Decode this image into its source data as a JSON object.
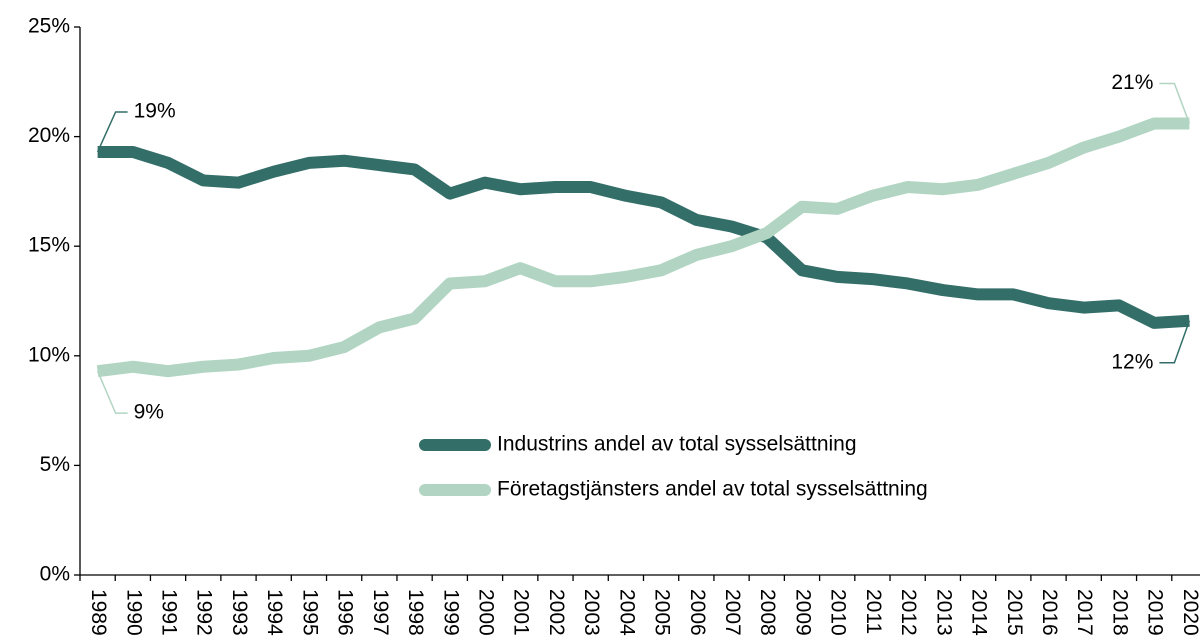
{
  "chart_data": {
    "type": "line",
    "categories": [
      "1989",
      "1990",
      "1991",
      "1992",
      "1993",
      "1994",
      "1995",
      "1996",
      "1997",
      "1998",
      "1999",
      "2000",
      "2001",
      "2002",
      "2003",
      "2004",
      "2005",
      "2006",
      "2007",
      "2008",
      "2009",
      "2010",
      "2011",
      "2012",
      "2013",
      "2014",
      "2015",
      "2016",
      "2017",
      "2018",
      "2019",
      "2020"
    ],
    "series": [
      {
        "name": "Industrins andel av total sysselsättning",
        "color": "#336e68",
        "values": [
          19.3,
          19.3,
          18.8,
          18.0,
          17.9,
          18.4,
          18.8,
          18.9,
          18.7,
          18.5,
          17.4,
          17.9,
          17.6,
          17.7,
          17.7,
          17.3,
          17.0,
          16.2,
          15.9,
          15.4,
          13.9,
          13.6,
          13.5,
          13.3,
          13.0,
          12.8,
          12.8,
          12.4,
          12.2,
          12.3,
          11.5,
          11.6
        ],
        "value_labels": [
          "19%",
          null,
          null,
          null,
          null,
          null,
          null,
          null,
          null,
          null,
          null,
          null,
          null,
          null,
          null,
          null,
          null,
          null,
          null,
          null,
          null,
          null,
          null,
          null,
          null,
          null,
          null,
          null,
          null,
          null,
          null,
          "12%"
        ]
      },
      {
        "name": "Företagstjänsters andel av total sysselsättning",
        "color": "#b1d5c2",
        "values": [
          9.3,
          9.5,
          9.3,
          9.5,
          9.6,
          9.9,
          10.0,
          10.4,
          11.3,
          11.7,
          13.3,
          13.4,
          14.0,
          13.4,
          13.4,
          13.6,
          13.9,
          14.6,
          15.0,
          15.6,
          16.8,
          16.7,
          17.3,
          17.7,
          17.6,
          17.8,
          18.3,
          18.8,
          19.5,
          20.0,
          20.6,
          20.6
        ],
        "value_labels": [
          "9%",
          null,
          null,
          null,
          null,
          null,
          null,
          null,
          null,
          null,
          null,
          null,
          null,
          null,
          null,
          null,
          null,
          null,
          null,
          null,
          null,
          null,
          null,
          null,
          null,
          null,
          null,
          null,
          null,
          null,
          null,
          "21%"
        ]
      }
    ],
    "ylim": [
      0,
      25
    ],
    "yticks": [
      {
        "value": 0,
        "label": "0%"
      },
      {
        "value": 5,
        "label": "5%"
      },
      {
        "value": 10,
        "label": "10%"
      },
      {
        "value": 15,
        "label": "15%"
      },
      {
        "value": 20,
        "label": "20%"
      },
      {
        "value": 25,
        "label": "25%"
      }
    ],
    "grid": false,
    "legend": "center"
  }
}
